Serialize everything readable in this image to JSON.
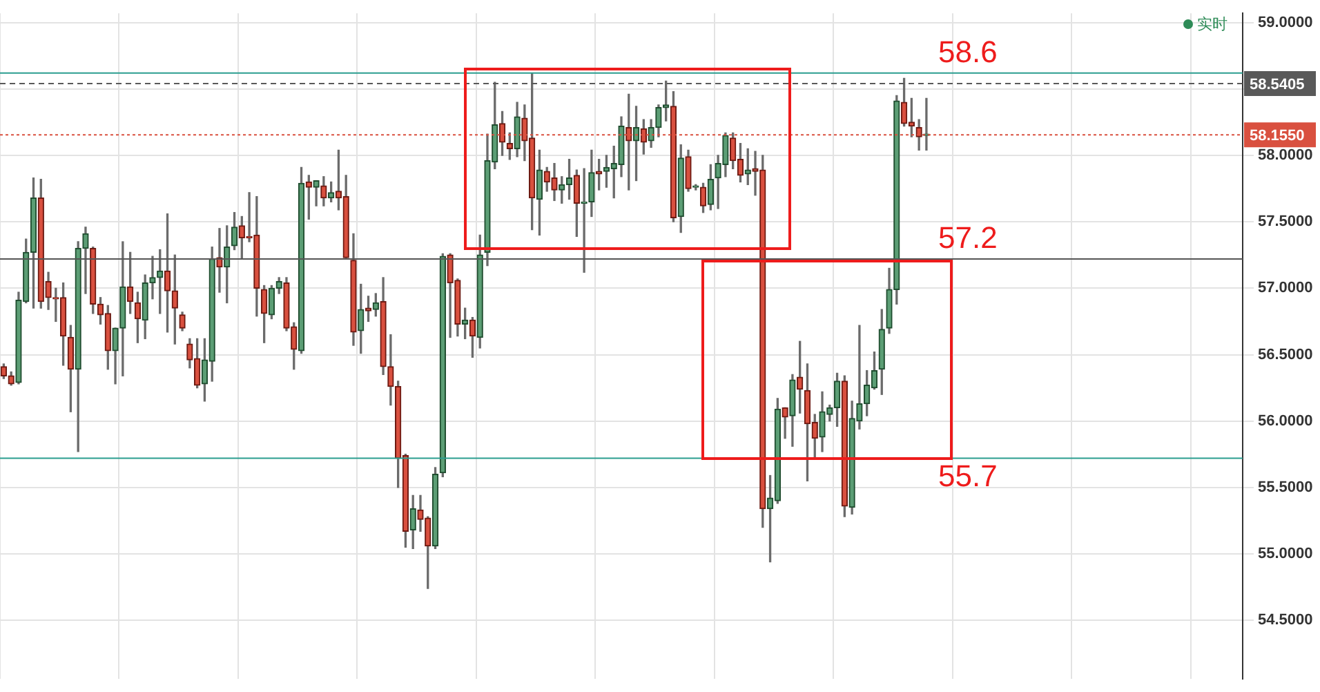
{
  "chart_data": {
    "type": "candlestick",
    "categories": [
      null,
      null,
      null,
      null,
      null,
      null,
      null,
      null,
      null,
      null,
      null,
      null,
      null,
      null,
      null,
      null,
      null,
      null,
      null,
      null,
      null,
      null,
      null,
      null,
      null,
      null,
      null,
      null,
      null,
      null,
      null,
      null,
      null,
      null,
      null,
      null,
      null,
      null,
      null,
      null,
      null,
      null,
      null,
      null,
      null,
      null,
      null,
      null,
      null,
      null,
      null,
      null,
      null,
      null,
      null,
      null,
      null,
      null,
      null,
      null,
      null,
      null,
      null,
      null,
      null,
      null,
      null,
      null,
      null,
      null,
      null,
      null,
      null,
      null,
      null,
      null,
      null,
      null,
      null,
      null,
      null,
      null,
      null,
      null,
      null,
      null,
      null,
      null,
      null,
      null,
      null,
      null,
      null,
      null,
      null,
      null,
      null,
      null,
      null,
      null,
      null,
      null,
      null,
      null,
      null,
      null,
      null,
      null,
      null,
      null,
      null,
      null,
      null,
      null,
      null,
      null,
      null,
      null,
      null,
      null,
      null,
      null,
      null,
      null,
      null,
      null,
      null,
      null,
      null,
      null,
      null,
      null,
      null,
      null,
      null,
      null,
      null,
      null,
      null,
      null,
      null,
      null,
      null,
      null,
      null,
      null,
      null,
      null,
      null,
      null,
      null,
      null,
      null,
      null,
      null,
      null,
      null,
      null,
      null,
      null,
      null,
      null,
      null,
      null,
      null,
      null,
      null
    ],
    "ohlc": [
      [
        56.41,
        56.43,
        56.32,
        56.34
      ],
      [
        56.34,
        56.37,
        56.27,
        56.28
      ],
      [
        56.29,
        56.97,
        56.28,
        56.91
      ],
      [
        56.9,
        57.37,
        56.89,
        57.27
      ],
      [
        57.27,
        57.83,
        56.85,
        57.68
      ],
      [
        57.68,
        57.82,
        56.85,
        56.9
      ],
      [
        57.05,
        57.12,
        56.84,
        56.93
      ],
      [
        56.93,
        57.0,
        56.75,
        56.92
      ],
      [
        56.93,
        57.04,
        56.42,
        56.64
      ],
      [
        56.63,
        56.72,
        56.07,
        56.39
      ],
      [
        56.39,
        57.35,
        55.77,
        57.3
      ],
      [
        57.3,
        57.46,
        56.96,
        57.41
      ],
      [
        57.3,
        57.31,
        56.81,
        56.88
      ],
      [
        56.88,
        56.93,
        56.73,
        56.8
      ],
      [
        56.81,
        56.87,
        56.39,
        56.53
      ],
      [
        56.53,
        56.7,
        56.28,
        56.7
      ],
      [
        56.7,
        57.35,
        56.34,
        57.01
      ],
      [
        57.01,
        57.27,
        56.81,
        56.9
      ],
      [
        56.89,
        56.97,
        56.59,
        56.77
      ],
      [
        56.76,
        57.1,
        56.62,
        57.04
      ],
      [
        57.04,
        57.24,
        56.92,
        57.08
      ],
      [
        57.08,
        57.29,
        56.81,
        57.13
      ],
      [
        57.13,
        57.56,
        56.67,
        56.98
      ],
      [
        56.98,
        57.25,
        56.58,
        56.85
      ],
      [
        56.8,
        56.82,
        56.68,
        56.7
      ],
      [
        56.58,
        56.62,
        56.4,
        56.46
      ],
      [
        56.47,
        56.62,
        56.25,
        56.27
      ],
      [
        56.28,
        56.62,
        56.15,
        56.46
      ],
      [
        56.45,
        57.31,
        56.3,
        57.22
      ],
      [
        57.23,
        57.45,
        56.97,
        57.16
      ],
      [
        57.16,
        57.47,
        56.89,
        57.31
      ],
      [
        57.32,
        57.57,
        57.29,
        57.46
      ],
      [
        57.47,
        57.54,
        57.22,
        57.38
      ],
      [
        57.39,
        57.72,
        57.35,
        57.38
      ],
      [
        57.4,
        57.69,
        56.79,
        57.0
      ],
      [
        56.99,
        57.02,
        56.59,
        56.81
      ],
      [
        56.8,
        57.02,
        56.77,
        57.0
      ],
      [
        57.0,
        57.08,
        56.96,
        57.05
      ],
      [
        57.04,
        57.08,
        56.68,
        56.7
      ],
      [
        56.71,
        56.74,
        56.39,
        56.54
      ],
      [
        56.53,
        57.91,
        56.51,
        57.79
      ],
      [
        57.8,
        57.85,
        57.52,
        57.76
      ],
      [
        57.76,
        57.81,
        57.62,
        57.81
      ],
      [
        57.77,
        57.84,
        57.62,
        57.68
      ],
      [
        57.68,
        57.8,
        57.65,
        57.72
      ],
      [
        57.73,
        58.04,
        57.59,
        57.68
      ],
      [
        57.69,
        57.85,
        57.23,
        57.23
      ],
      [
        57.21,
        57.41,
        56.57,
        56.67
      ],
      [
        56.68,
        57.03,
        56.51,
        56.84
      ],
      [
        56.85,
        56.94,
        56.75,
        56.83
      ],
      [
        56.84,
        56.96,
        56.79,
        56.89
      ],
      [
        56.9,
        57.08,
        56.35,
        56.41
      ],
      [
        56.41,
        56.65,
        56.12,
        56.26
      ],
      [
        56.26,
        56.3,
        55.5,
        55.72
      ],
      [
        55.74,
        55.75,
        55.05,
        55.17
      ],
      [
        55.18,
        55.44,
        55.04,
        55.34
      ],
      [
        55.33,
        55.44,
        55.17,
        55.26
      ],
      [
        55.27,
        55.28,
        54.74,
        55.06
      ],
      [
        55.06,
        55.65,
        55.04,
        55.6
      ],
      [
        55.61,
        57.26,
        55.58,
        57.24
      ],
      [
        57.25,
        57.26,
        56.63,
        57.04
      ],
      [
        57.06,
        57.07,
        56.64,
        56.73
      ],
      [
        56.73,
        56.85,
        56.62,
        56.76
      ],
      [
        56.76,
        56.78,
        56.48,
        56.64
      ],
      [
        56.63,
        57.4,
        56.55,
        57.25
      ],
      [
        57.27,
        58.16,
        57.17,
        57.96
      ],
      [
        57.95,
        58.55,
        57.9,
        58.23
      ],
      [
        58.24,
        58.33,
        58.0,
        58.1
      ],
      [
        58.09,
        58.17,
        57.97,
        58.05
      ],
      [
        58.05,
        58.4,
        57.99,
        58.29
      ],
      [
        58.28,
        58.38,
        57.96,
        58.11
      ],
      [
        58.13,
        58.62,
        57.44,
        57.68
      ],
      [
        57.67,
        58.04,
        57.4,
        57.89
      ],
      [
        57.88,
        57.91,
        57.73,
        57.8
      ],
      [
        57.83,
        57.94,
        57.66,
        57.74
      ],
      [
        57.74,
        57.84,
        57.64,
        57.78
      ],
      [
        57.78,
        57.97,
        57.67,
        57.83
      ],
      [
        57.85,
        57.89,
        57.39,
        57.64
      ],
      [
        57.64,
        57.9,
        57.12,
        57.65
      ],
      [
        57.65,
        58.04,
        57.54,
        57.87
      ],
      [
        57.88,
        57.97,
        57.74,
        57.86
      ],
      [
        57.88,
        58.0,
        57.76,
        57.91
      ],
      [
        57.9,
        58.07,
        57.68,
        57.94
      ],
      [
        57.93,
        58.29,
        57.84,
        58.22
      ],
      [
        58.21,
        58.46,
        57.74,
        58.11
      ],
      [
        58.11,
        58.37,
        57.81,
        58.21
      ],
      [
        58.2,
        58.27,
        58.01,
        58.1
      ],
      [
        58.11,
        58.27,
        58.06,
        58.21
      ],
      [
        58.21,
        58.38,
        58.14,
        58.36
      ],
      [
        58.36,
        58.56,
        58.26,
        58.38
      ],
      [
        58.37,
        58.48,
        57.5,
        57.53
      ],
      [
        57.54,
        58.08,
        57.42,
        57.98
      ],
      [
        57.99,
        58.04,
        57.73,
        57.75
      ],
      [
        57.76,
        57.78,
        57.74,
        57.77
      ],
      [
        57.76,
        57.79,
        57.57,
        57.62
      ],
      [
        57.63,
        57.93,
        57.59,
        57.82
      ],
      [
        57.83,
        58.0,
        57.6,
        57.94
      ],
      [
        57.93,
        58.17,
        57.84,
        58.15
      ],
      [
        58.13,
        58.17,
        57.9,
        57.96
      ],
      [
        57.97,
        58.09,
        57.8,
        57.85
      ],
      [
        57.86,
        58.05,
        57.78,
        57.89
      ],
      [
        57.9,
        58.03,
        57.7,
        57.88
      ],
      [
        57.89,
        58.0,
        55.2,
        55.34
      ],
      [
        55.34,
        55.59,
        54.94,
        55.42
      ],
      [
        55.4,
        56.17,
        55.38,
        56.09
      ],
      [
        56.1,
        56.1,
        55.87,
        56.03
      ],
      [
        56.04,
        56.35,
        55.81,
        56.31
      ],
      [
        56.33,
        56.6,
        56.06,
        56.24
      ],
      [
        56.23,
        56.43,
        55.55,
        55.98
      ],
      [
        55.99,
        56.05,
        55.72,
        55.87
      ],
      [
        55.88,
        56.22,
        55.77,
        56.07
      ],
      [
        56.05,
        56.12,
        56.0,
        56.1
      ],
      [
        56.1,
        56.36,
        55.96,
        56.3
      ],
      [
        56.3,
        56.34,
        55.28,
        55.36
      ],
      [
        55.35,
        56.15,
        55.3,
        56.02
      ],
      [
        56.0,
        56.72,
        55.94,
        56.13
      ],
      [
        56.13,
        56.38,
        56.04,
        56.27
      ],
      [
        56.25,
        56.52,
        56.24,
        56.38
      ],
      [
        56.39,
        56.84,
        56.2,
        56.69
      ],
      [
        56.7,
        57.15,
        56.66,
        56.99
      ],
      [
        56.99,
        58.45,
        56.88,
        58.41
      ],
      [
        58.4,
        58.58,
        58.22,
        58.24
      ],
      [
        58.25,
        58.43,
        58.14,
        58.22
      ],
      [
        58.21,
        58.27,
        58.04,
        58.14
      ],
      [
        58.15,
        58.43,
        58.04,
        58.16
      ],
      null,
      null,
      null,
      null,
      null,
      null,
      null,
      null,
      null,
      null,
      null,
      null,
      null,
      null,
      null,
      null,
      null,
      null,
      null,
      null,
      null,
      null,
      null,
      null,
      null,
      null,
      null,
      null,
      null,
      null,
      null,
      null,
      null,
      null,
      null,
      null,
      null,
      null,
      null,
      null,
      null,
      null
    ],
    "ylim": [
      54.06,
      59.07
    ],
    "yticks": [
      {
        "value": 54.5,
        "label": "54.5000"
      },
      {
        "value": 55,
        "label": "55.0000"
      },
      {
        "value": 55.5,
        "label": "55.5000"
      },
      {
        "value": 56,
        "label": "56.0000"
      },
      {
        "value": 56.5,
        "label": "56.5000"
      },
      {
        "value": 57,
        "label": "57.0000"
      },
      {
        "value": 57.5,
        "label": "57.5000"
      },
      {
        "value": 58,
        "label": "58.0000"
      },
      {
        "value": 58.5,
        "label": null
      },
      {
        "value": 59,
        "label": "59.0000"
      }
    ],
    "ref_lines": [
      {
        "axis": "y",
        "value": 58.62,
        "label": "58.6",
        "color": "#2a9d8f",
        "line_style": "solid"
      },
      {
        "axis": "y",
        "value": 57.22,
        "label": "57.2",
        "color": "#555555",
        "line_style": "solid"
      },
      {
        "axis": "y",
        "value": 55.72,
        "label": "55.7",
        "color": "#2a9d8f",
        "line_style": "solid"
      },
      {
        "axis": "y",
        "value": 58.5405,
        "label": "58.5405",
        "color": "#595959",
        "line_style": "dashed"
      },
      {
        "axis": "y",
        "value": 58.155,
        "label": "58.1550",
        "color": "#d9503f",
        "line_style": "dotted"
      }
    ],
    "annotations": [
      "实时"
    ],
    "grid": true
  }
}
